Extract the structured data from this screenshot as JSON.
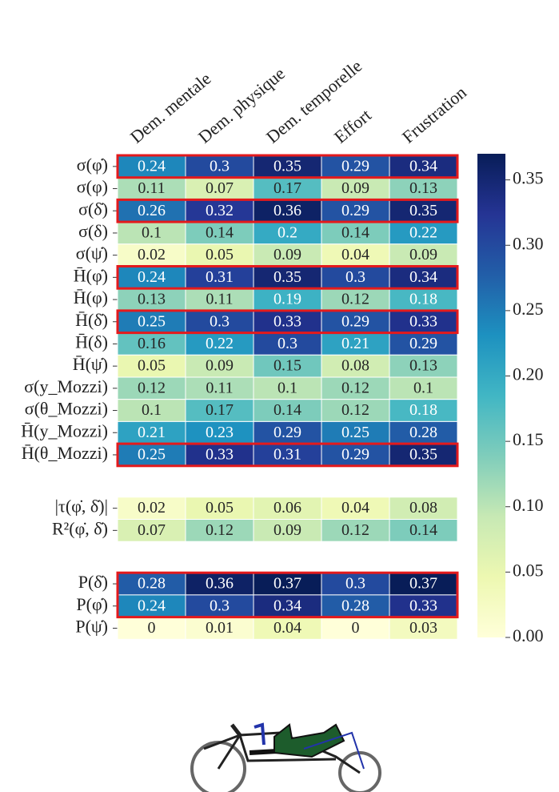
{
  "chart_data": {
    "type": "heatmap",
    "columns": [
      "Dem. mentale",
      "Dem. physique",
      "Dem. temporelle",
      "Effort",
      "Frustration"
    ],
    "row_groups": [
      {
        "rows": [
          "σ(φ̇)",
          "σ(φ)",
          "σ(δ̇)",
          "σ(δ)",
          "σ(ψ̇)",
          "H̄(φ̇)",
          "H̄(φ)",
          "H̄(δ̇)",
          "H̄(δ)",
          "H̄(ψ̇)",
          "σ(y_Mozzi)",
          "σ(θ_Mozzi)",
          "H̄(y_Mozzi)",
          "H̄(θ_Mozzi)"
        ],
        "values": [
          [
            0.24,
            0.3,
            0.35,
            0.29,
            0.34
          ],
          [
            0.11,
            0.07,
            0.17,
            0.09,
            0.13
          ],
          [
            0.26,
            0.32,
            0.36,
            0.29,
            0.35
          ],
          [
            0.1,
            0.14,
            0.2,
            0.14,
            0.22
          ],
          [
            0.02,
            0.05,
            0.09,
            0.04,
            0.09
          ],
          [
            0.24,
            0.31,
            0.35,
            0.3,
            0.34
          ],
          [
            0.13,
            0.11,
            0.19,
            0.12,
            0.18
          ],
          [
            0.25,
            0.3,
            0.33,
            0.29,
            0.33
          ],
          [
            0.16,
            0.22,
            0.3,
            0.21,
            0.29
          ],
          [
            0.05,
            0.09,
            0.15,
            0.08,
            0.13
          ],
          [
            0.12,
            0.11,
            0.1,
            0.12,
            0.1
          ],
          [
            0.1,
            0.17,
            0.14,
            0.12,
            0.18
          ],
          [
            0.21,
            0.23,
            0.29,
            0.25,
            0.28
          ],
          [
            0.25,
            0.33,
            0.31,
            0.29,
            0.35
          ]
        ],
        "highlighted": [
          true,
          false,
          true,
          false,
          false,
          true,
          false,
          true,
          false,
          false,
          false,
          false,
          false,
          true
        ]
      },
      {
        "rows": [
          "|τ(φ̇, δ̇)|",
          "R²(φ̇, δ̇)"
        ],
        "values": [
          [
            0.02,
            0.05,
            0.06,
            0.04,
            0.08
          ],
          [
            0.07,
            0.12,
            0.09,
            0.12,
            0.14
          ]
        ],
        "highlighted": [
          false,
          false
        ]
      },
      {
        "rows": [
          "P(δ̇)",
          "P(φ̇)",
          "P(ψ̇)"
        ],
        "values": [
          [
            0.28,
            0.36,
            0.37,
            0.3,
            0.37
          ],
          [
            0.24,
            0.3,
            0.34,
            0.28,
            0.33
          ],
          [
            0,
            0.01,
            0.04,
            0,
            0.03
          ]
        ],
        "highlighted": [
          true,
          true,
          false
        ]
      }
    ],
    "clim": [
      0,
      0.37
    ],
    "cticks": [
      {
        "value": 0,
        "label": "0.00"
      },
      0.05,
      {
        "value": 0.1,
        "label": "0.10"
      },
      0.15,
      {
        "value": 0.2,
        "label": "0.20"
      },
      0.25,
      {
        "value": 0.3,
        "label": "0.30"
      },
      0.35
    ],
    "colormap": [
      "#ffffd9",
      "#edf8b1",
      "#c7e9b4",
      "#7fcdbb",
      "#41b6c4",
      "#1d91c0",
      "#225ea8",
      "#253494",
      "#081d58"
    ],
    "highlight_color": "#e41a1c"
  }
}
